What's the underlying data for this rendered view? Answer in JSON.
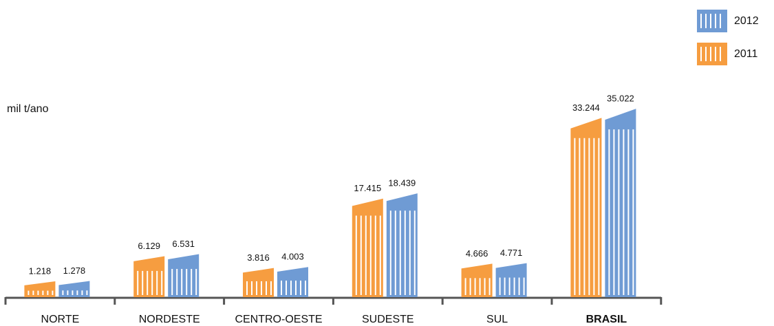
{
  "chart_data": {
    "type": "bar",
    "ylabel": "mil t/ano",
    "categories": [
      "NORTE",
      "NORDESTE",
      "CENTRO-OESTE",
      "SUDESTE",
      "SUL",
      "BRASIL"
    ],
    "series": [
      {
        "name": "2011",
        "color": "#f69d40",
        "values": [
          1218,
          6129,
          3816,
          17415,
          4666,
          33244
        ],
        "value_labels": [
          "1.218",
          "6.129",
          "3.816",
          "17.415",
          "4.666",
          "33.244"
        ]
      },
      {
        "name": "2012",
        "color": "#6f9bd4",
        "values": [
          1278,
          6531,
          4003,
          18439,
          4771,
          35022
        ],
        "value_labels": [
          "1.278",
          "6.531",
          "4.003",
          "18.439",
          "4.771",
          "35.022"
        ]
      }
    ]
  }
}
